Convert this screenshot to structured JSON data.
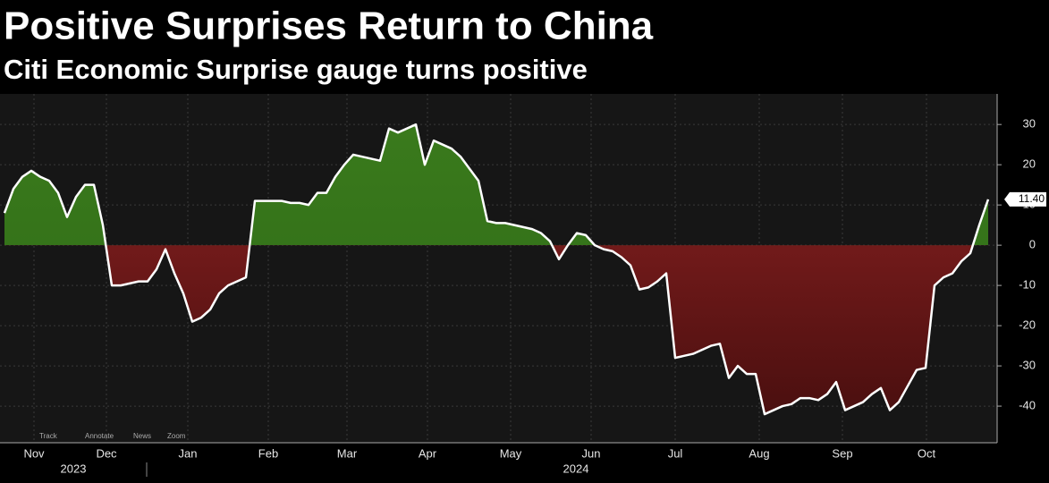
{
  "chart_data": {
    "type": "area",
    "title": "Positive Surprises Return to China",
    "subtitle": "Citi Economic Surprise gauge turns positive",
    "values": [
      8,
      14,
      17,
      18.5,
      17,
      16,
      13,
      7,
      12,
      15,
      15,
      5,
      -10,
      -10,
      -9.5,
      -9,
      -9,
      -6,
      -1,
      -7,
      -12,
      -19,
      -18,
      -16,
      -12,
      -10,
      -9,
      -8,
      11,
      11,
      11,
      11,
      10.5,
      10.5,
      10,
      13,
      13,
      17,
      20,
      22.5,
      22,
      21.5,
      21,
      29,
      28,
      29,
      30,
      20,
      26,
      25,
      24,
      22,
      19,
      16,
      6,
      5.5,
      5.5,
      5,
      4.5,
      4,
      3,
      1,
      -3.5,
      0,
      3,
      2.5,
      0,
      -1,
      -1.5,
      -3,
      -5,
      -11,
      -10.5,
      -9,
      -7,
      -28,
      -27.5,
      -27,
      -26,
      -25,
      -24.5,
      -33,
      -30,
      -32,
      -32,
      -42,
      -41,
      -40,
      -39.5,
      -38,
      -38,
      -38.5,
      -37,
      -34,
      -41,
      -40,
      -39,
      -37,
      -35.5,
      -41,
      -39,
      -35,
      -31,
      -30.5,
      -10,
      -8,
      -7,
      -4,
      -2,
      5,
      11.4
    ],
    "positive_color": "#3f7d1f",
    "negative_color": "#8e2222",
    "line_color": "#ffffff",
    "end_label": {
      "value": 11.4,
      "label": "11.40"
    },
    "xlim": [
      -0.5,
      111
    ],
    "xticks": [
      {
        "value": 3.3,
        "label": "Nov"
      },
      {
        "value": 11.4,
        "label": "Dec"
      },
      {
        "value": 20.5,
        "label": "Jan"
      },
      {
        "value": 29.5,
        "label": "Feb"
      },
      {
        "value": 38.3,
        "label": "Mar"
      },
      {
        "value": 47.3,
        "label": "Apr"
      },
      {
        "value": 56.6,
        "label": "May"
      },
      {
        "value": 65.6,
        "label": "Jun"
      },
      {
        "value": 75,
        "label": "Jul"
      },
      {
        "value": 84.4,
        "label": "Aug"
      },
      {
        "value": 93.7,
        "label": "Sep"
      },
      {
        "value": 103.1,
        "label": "Oct"
      }
    ],
    "year_labels": [
      {
        "value": 7.7,
        "label": "2023"
      },
      {
        "value": 63.9,
        "label": "2024"
      }
    ],
    "ylim": [
      -49.1,
      37.6
    ],
    "yticks": [
      30,
      20,
      10,
      0,
      -10,
      -20,
      -30,
      -40
    ],
    "grid": true,
    "toolbar": [
      "Track",
      "Annotate",
      "News",
      "Zoom"
    ]
  }
}
